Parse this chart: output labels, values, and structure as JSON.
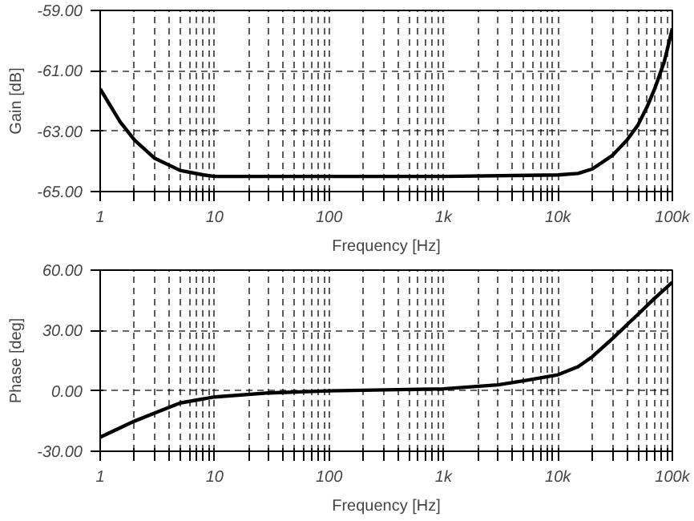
{
  "chart_data": [
    {
      "type": "line",
      "xlabel": "Frequency [Hz]",
      "ylabel": "Gain [dB]",
      "log": "x",
      "grid": true,
      "marker": "none",
      "line_style": "solid",
      "xlim": [
        1,
        100000
      ],
      "ylim": [
        -65,
        -59
      ],
      "xticks": [
        {
          "value": 1,
          "label": "1"
        },
        {
          "value": 2,
          "label": null
        },
        {
          "value": 3,
          "label": null
        },
        {
          "value": 4,
          "label": null
        },
        {
          "value": 5,
          "label": null
        },
        {
          "value": 6,
          "label": null
        },
        {
          "value": 7,
          "label": null
        },
        {
          "value": 8,
          "label": null
        },
        {
          "value": 9,
          "label": null
        },
        {
          "value": 10,
          "label": "10"
        },
        {
          "value": 20,
          "label": null
        },
        {
          "value": 30,
          "label": null
        },
        {
          "value": 40,
          "label": null
        },
        {
          "value": 50,
          "label": null
        },
        {
          "value": 60,
          "label": null
        },
        {
          "value": 70,
          "label": null
        },
        {
          "value": 80,
          "label": null
        },
        {
          "value": 90,
          "label": null
        },
        {
          "value": 100,
          "label": "100"
        },
        {
          "value": 200,
          "label": null
        },
        {
          "value": 300,
          "label": null
        },
        {
          "value": 400,
          "label": null
        },
        {
          "value": 500,
          "label": null
        },
        {
          "value": 600,
          "label": null
        },
        {
          "value": 700,
          "label": null
        },
        {
          "value": 800,
          "label": null
        },
        {
          "value": 900,
          "label": null
        },
        {
          "value": 1000,
          "label": "1k"
        },
        {
          "value": 2000,
          "label": null
        },
        {
          "value": 3000,
          "label": null
        },
        {
          "value": 4000,
          "label": null
        },
        {
          "value": 5000,
          "label": null
        },
        {
          "value": 6000,
          "label": null
        },
        {
          "value": 7000,
          "label": null
        },
        {
          "value": 8000,
          "label": null
        },
        {
          "value": 9000,
          "label": null
        },
        {
          "value": 10000,
          "label": "10k"
        },
        {
          "value": 20000,
          "label": null
        },
        {
          "value": 30000,
          "label": null
        },
        {
          "value": 40000,
          "label": null
        },
        {
          "value": 50000,
          "label": null
        },
        {
          "value": 60000,
          "label": null
        },
        {
          "value": 70000,
          "label": null
        },
        {
          "value": 80000,
          "label": null
        },
        {
          "value": 90000,
          "label": null
        },
        {
          "value": 100000,
          "label": "100k"
        }
      ],
      "yticks": [
        {
          "value": -65,
          "label": "-65.00"
        },
        {
          "value": -63,
          "label": "-63.00"
        },
        {
          "value": -61,
          "label": "-61.00"
        },
        {
          "value": -59,
          "label": "-59.00"
        }
      ],
      "x": [
        1,
        1.5,
        2,
        3,
        5,
        8,
        10,
        100,
        1000,
        10000,
        15000,
        20000,
        30000,
        40000,
        50000,
        60000,
        70000,
        85000,
        100000
      ],
      "series": [
        {
          "color": "#000000",
          "values": [
            -61.6,
            -62.7,
            -63.3,
            -63.9,
            -64.3,
            -64.45,
            -64.5,
            -64.5,
            -64.5,
            -64.45,
            -64.4,
            -64.25,
            -63.8,
            -63.3,
            -62.8,
            -62.2,
            -61.6,
            -60.7,
            -59.6
          ]
        }
      ]
    },
    {
      "type": "line",
      "xlabel": "Frequency [Hz]",
      "ylabel": "Phase [deg]",
      "log": "x",
      "grid": true,
      "marker": "none",
      "line_style": "solid",
      "xlim": [
        1,
        100000
      ],
      "ylim": [
        -30,
        60
      ],
      "xticks": [
        {
          "value": 1,
          "label": "1"
        },
        {
          "value": 2,
          "label": null
        },
        {
          "value": 3,
          "label": null
        },
        {
          "value": 4,
          "label": null
        },
        {
          "value": 5,
          "label": null
        },
        {
          "value": 6,
          "label": null
        },
        {
          "value": 7,
          "label": null
        },
        {
          "value": 8,
          "label": null
        },
        {
          "value": 9,
          "label": null
        },
        {
          "value": 10,
          "label": "10"
        },
        {
          "value": 20,
          "label": null
        },
        {
          "value": 30,
          "label": null
        },
        {
          "value": 40,
          "label": null
        },
        {
          "value": 50,
          "label": null
        },
        {
          "value": 60,
          "label": null
        },
        {
          "value": 70,
          "label": null
        },
        {
          "value": 80,
          "label": null
        },
        {
          "value": 90,
          "label": null
        },
        {
          "value": 100,
          "label": "100"
        },
        {
          "value": 200,
          "label": null
        },
        {
          "value": 300,
          "label": null
        },
        {
          "value": 400,
          "label": null
        },
        {
          "value": 500,
          "label": null
        },
        {
          "value": 600,
          "label": null
        },
        {
          "value": 700,
          "label": null
        },
        {
          "value": 800,
          "label": null
        },
        {
          "value": 900,
          "label": null
        },
        {
          "value": 1000,
          "label": "1k"
        },
        {
          "value": 2000,
          "label": null
        },
        {
          "value": 3000,
          "label": null
        },
        {
          "value": 4000,
          "label": null
        },
        {
          "value": 5000,
          "label": null
        },
        {
          "value": 6000,
          "label": null
        },
        {
          "value": 7000,
          "label": null
        },
        {
          "value": 8000,
          "label": null
        },
        {
          "value": 9000,
          "label": null
        },
        {
          "value": 10000,
          "label": "10k"
        },
        {
          "value": 20000,
          "label": null
        },
        {
          "value": 30000,
          "label": null
        },
        {
          "value": 40000,
          "label": null
        },
        {
          "value": 50000,
          "label": null
        },
        {
          "value": 60000,
          "label": null
        },
        {
          "value": 70000,
          "label": null
        },
        {
          "value": 80000,
          "label": null
        },
        {
          "value": 90000,
          "label": null
        },
        {
          "value": 100000,
          "label": "100k"
        }
      ],
      "yticks": [
        {
          "value": -30,
          "label": "-30.00"
        },
        {
          "value": 0,
          "label": "0.00"
        },
        {
          "value": 30,
          "label": "30.00"
        },
        {
          "value": 60,
          "label": "60.00"
        }
      ],
      "x": [
        1,
        2,
        3,
        5,
        10,
        30,
        100,
        1000,
        3000,
        5000,
        10000,
        15000,
        20000,
        30000,
        50000,
        70000,
        100000
      ],
      "series": [
        {
          "color": "#000000",
          "values": [
            -23,
            -15,
            -11,
            -6,
            -3,
            -1,
            0,
            1,
            3,
            5,
            8,
            12,
            17,
            26,
            38,
            46,
            54
          ]
        }
      ]
    }
  ]
}
